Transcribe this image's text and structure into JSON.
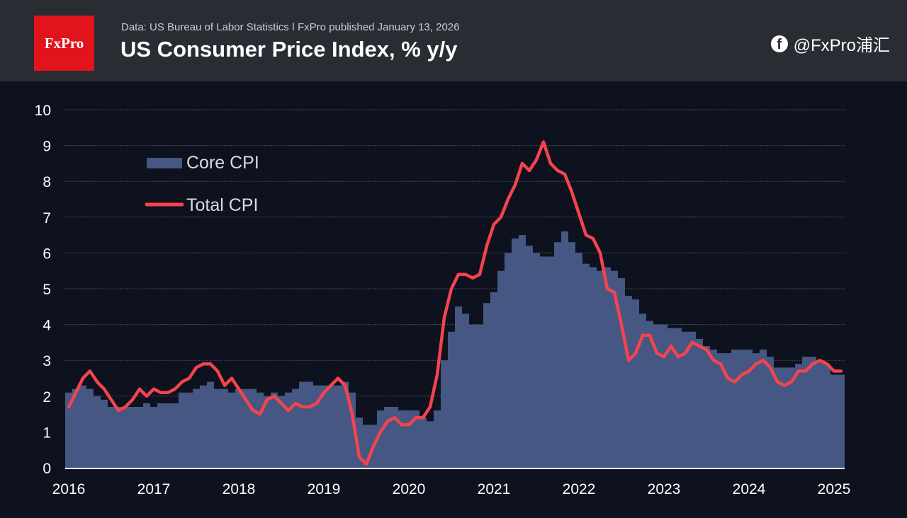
{
  "header": {
    "logo": "FxPro",
    "source": "Data: US Bureau of Labor Statistics  ǀ  FxPro published January 13, 2026",
    "title": "US Consumer Price Index, % y/y"
  },
  "watermark": "@FxPro浦汇",
  "colors": {
    "core": "#465783",
    "total": "#f5434e",
    "background": "#0d121e",
    "header": "#2a2c33",
    "logo": "#e1141b"
  },
  "chart_data": {
    "type": "area+line",
    "title": "US Consumer Price Index, % y/y",
    "ylim": [
      0,
      10
    ],
    "yticks": [
      "0",
      "1",
      "2",
      "3",
      "4",
      "5",
      "6",
      "7",
      "8",
      "9",
      "10"
    ],
    "xticks": [
      "2016",
      "2017",
      "2018",
      "2019",
      "2020",
      "2021",
      "2022",
      "2023",
      "2024",
      "2025"
    ],
    "grid": "horizontal dotted",
    "legend_placement": "top-left",
    "series": [
      {
        "name": "Core CPI",
        "style": "step-area",
        "values": [
          2.1,
          2.2,
          2.3,
          2.2,
          2.0,
          1.9,
          1.7,
          1.7,
          1.7,
          1.7,
          1.7,
          1.8,
          1.7,
          1.8,
          1.8,
          1.8,
          2.1,
          2.1,
          2.2,
          2.3,
          2.4,
          2.2,
          2.2,
          2.1,
          2.2,
          2.2,
          2.2,
          2.1,
          2.0,
          2.1,
          2.0,
          2.1,
          2.2,
          2.4,
          2.4,
          2.3,
          2.3,
          2.3,
          2.3,
          2.4,
          2.1,
          1.4,
          1.2,
          1.2,
          1.6,
          1.7,
          1.7,
          1.6,
          1.6,
          1.6,
          1.4,
          1.3,
          1.6,
          3.0,
          3.8,
          4.5,
          4.3,
          4.0,
          4.0,
          4.6,
          4.9,
          5.5,
          6.0,
          6.4,
          6.5,
          6.2,
          6.0,
          5.9,
          5.9,
          6.3,
          6.6,
          6.3,
          6.0,
          5.7,
          5.6,
          5.5,
          5.6,
          5.5,
          5.3,
          4.8,
          4.7,
          4.3,
          4.1,
          4.0,
          4.0,
          3.9,
          3.9,
          3.8,
          3.8,
          3.6,
          3.4,
          3.3,
          3.2,
          3.2,
          3.3,
          3.3,
          3.3,
          3.2,
          3.3,
          3.1,
          2.8,
          2.8,
          2.8,
          2.9,
          3.1,
          3.1,
          3.0,
          2.9,
          2.6,
          2.6
        ]
      },
      {
        "name": "Total CPI",
        "style": "line",
        "values": [
          1.7,
          2.1,
          2.5,
          2.7,
          2.4,
          2.2,
          1.9,
          1.6,
          1.7,
          1.9,
          2.2,
          2.0,
          2.2,
          2.1,
          2.1,
          2.2,
          2.4,
          2.5,
          2.8,
          2.9,
          2.9,
          2.7,
          2.3,
          2.5,
          2.2,
          1.9,
          1.6,
          1.5,
          1.9,
          2.0,
          1.8,
          1.6,
          1.8,
          1.7,
          1.7,
          1.8,
          2.1,
          2.3,
          2.5,
          2.3,
          1.5,
          0.3,
          0.1,
          0.6,
          1.0,
          1.3,
          1.4,
          1.2,
          1.2,
          1.4,
          1.4,
          1.7,
          2.6,
          4.2,
          5.0,
          5.4,
          5.4,
          5.3,
          5.4,
          6.2,
          6.8,
          7.0,
          7.5,
          7.9,
          8.5,
          8.3,
          8.6,
          9.1,
          8.5,
          8.3,
          8.2,
          7.7,
          7.1,
          6.5,
          6.4,
          6.0,
          5.0,
          4.9,
          4.0,
          3.0,
          3.2,
          3.7,
          3.7,
          3.2,
          3.1,
          3.4,
          3.1,
          3.2,
          3.5,
          3.4,
          3.3,
          3.0,
          2.9,
          2.5,
          2.4,
          2.6,
          2.7,
          2.9,
          3.0,
          2.8,
          2.4,
          2.3,
          2.4,
          2.7,
          2.7,
          2.9,
          3.0,
          2.9,
          2.7,
          2.7
        ]
      }
    ]
  }
}
